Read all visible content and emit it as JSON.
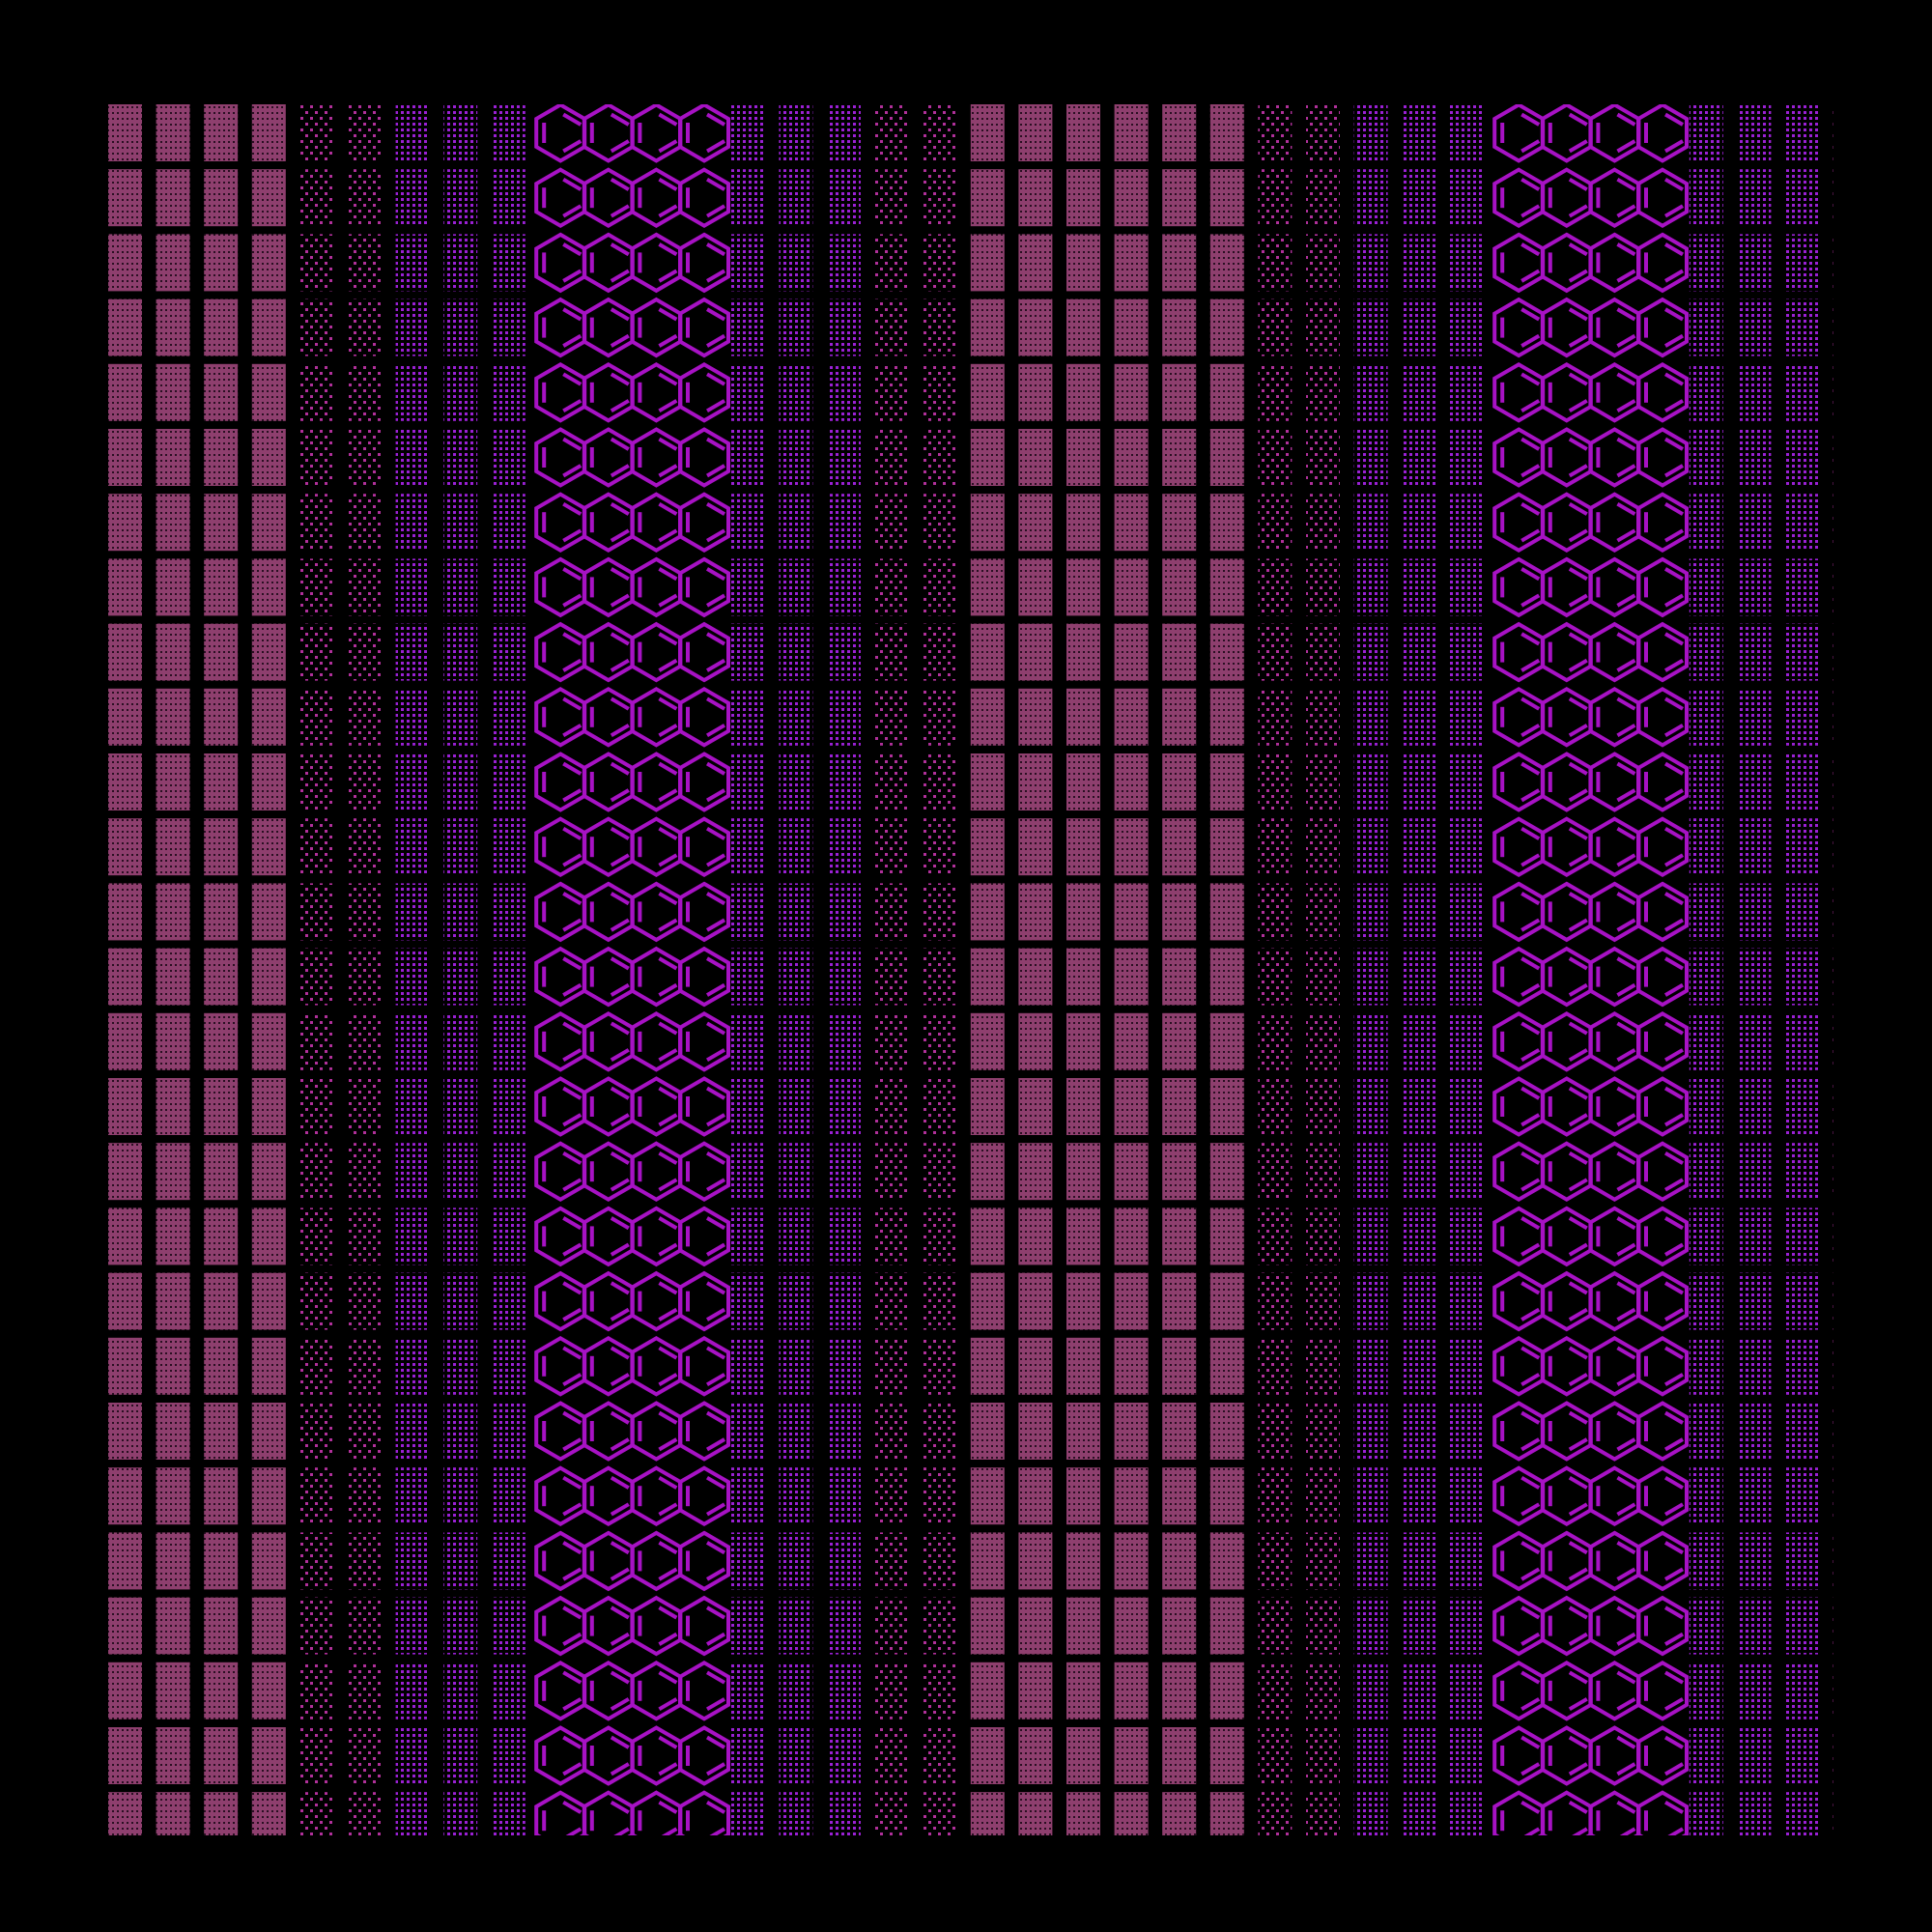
{
  "colors": {
    "background": "#000000",
    "pink_block": "#8e3f6e",
    "sparse_dot": "#b0309a",
    "purple_dot": "#9a20d4",
    "hexagon_stroke": "#a712c4"
  },
  "column_pattern": [
    "block",
    "block",
    "block",
    "block",
    "sparse",
    "sparse",
    "dots",
    "dots",
    "dots",
    "hex",
    "hex",
    "hex",
    "hex",
    "dots",
    "dots",
    "dots",
    "sparse",
    "sparse",
    "block",
    "block",
    "block",
    "block",
    "block",
    "block",
    "sparse",
    "sparse",
    "dots",
    "dots",
    "dots",
    "hex",
    "hex",
    "hex",
    "hex",
    "dots",
    "dots",
    "dots",
    "sparse"
  ],
  "icons": {
    "hexagon": "benzene-ring-icon"
  }
}
